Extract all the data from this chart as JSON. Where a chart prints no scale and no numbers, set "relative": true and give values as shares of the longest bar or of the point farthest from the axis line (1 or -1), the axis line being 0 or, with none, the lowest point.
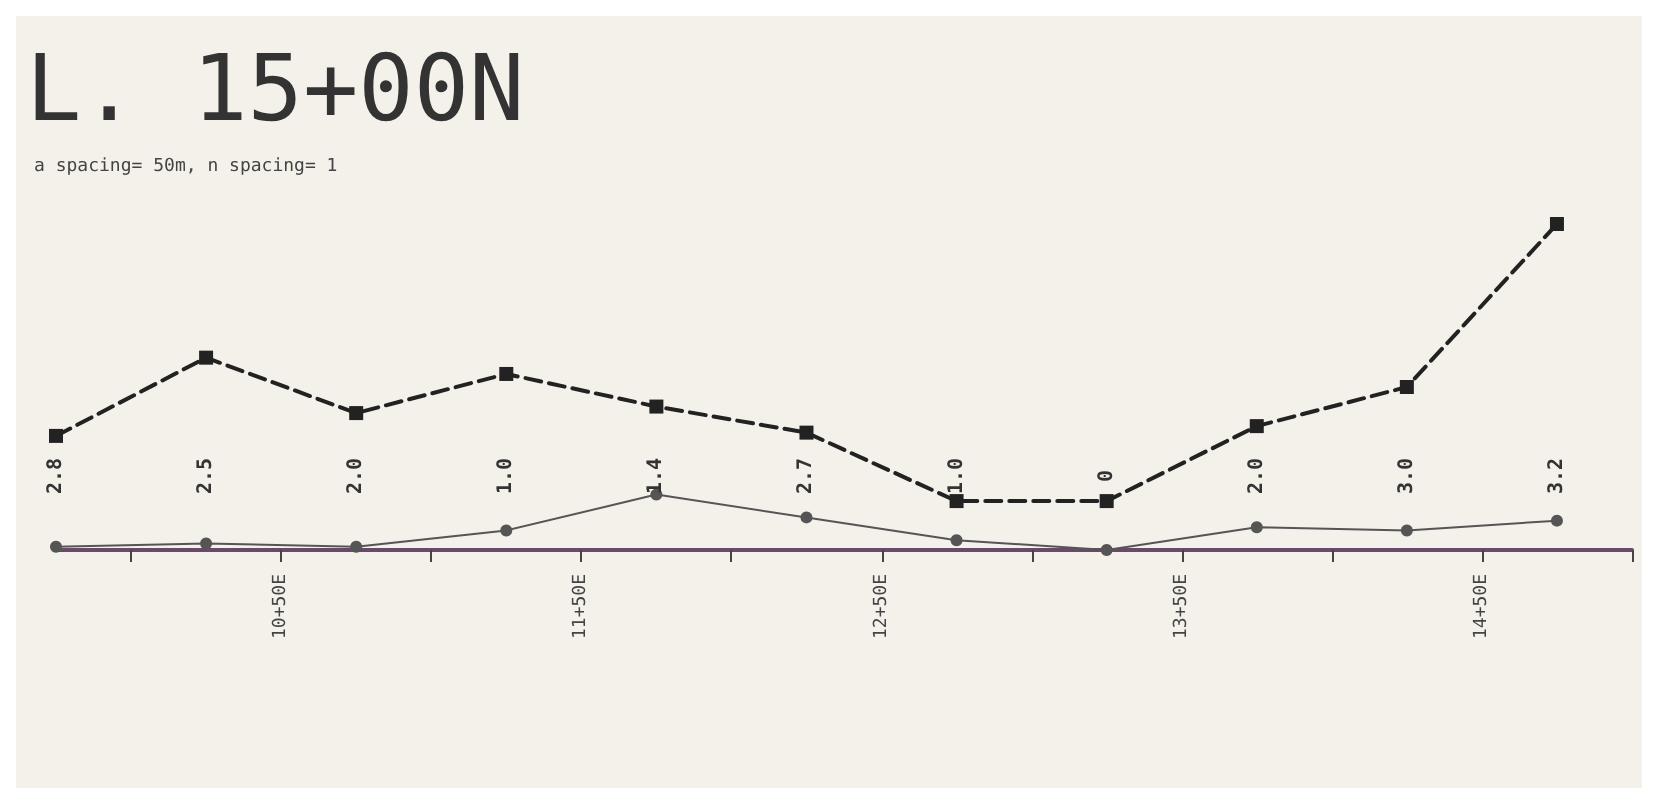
{
  "chart_data": {
    "type": "line",
    "title": "L. 15+00N",
    "subtitle": "a spacing= 50m, n spacing= 1",
    "relative": true,
    "grid": false,
    "annotations": [
      "2.8",
      "2.5",
      "2.0",
      "1.0",
      "1.4",
      "2.7",
      "1.0",
      "0",
      "2.0",
      "3.0",
      "3.2"
    ],
    "categories": [
      null,
      null,
      null,
      "10+50E",
      null,
      null,
      null,
      "11+50E",
      null,
      null,
      null,
      "12+50E",
      null,
      null,
      null,
      "13+50E",
      null,
      null,
      null,
      "14+50E",
      null,
      null
    ],
    "series": [
      {
        "color": "#222222",
        "line_style": "dashed",
        "marker": "square",
        "values": [
          0.35,
          null,
          0.59,
          null,
          0.42,
          null,
          0.54,
          null,
          0.44,
          null,
          0.36,
          null,
          0.15,
          null,
          0.15,
          null,
          0.38,
          null,
          0.5,
          null,
          1,
          null
        ]
      },
      {
        "color": "#555555",
        "line_style": "solid",
        "marker": "circle",
        "values": [
          0.01,
          null,
          0.02,
          null,
          0.01,
          null,
          0.06,
          null,
          0.17,
          null,
          0.1,
          null,
          0.03,
          null,
          0,
          null,
          0.07,
          null,
          0.06,
          null,
          0.09,
          null
        ]
      }
    ]
  }
}
